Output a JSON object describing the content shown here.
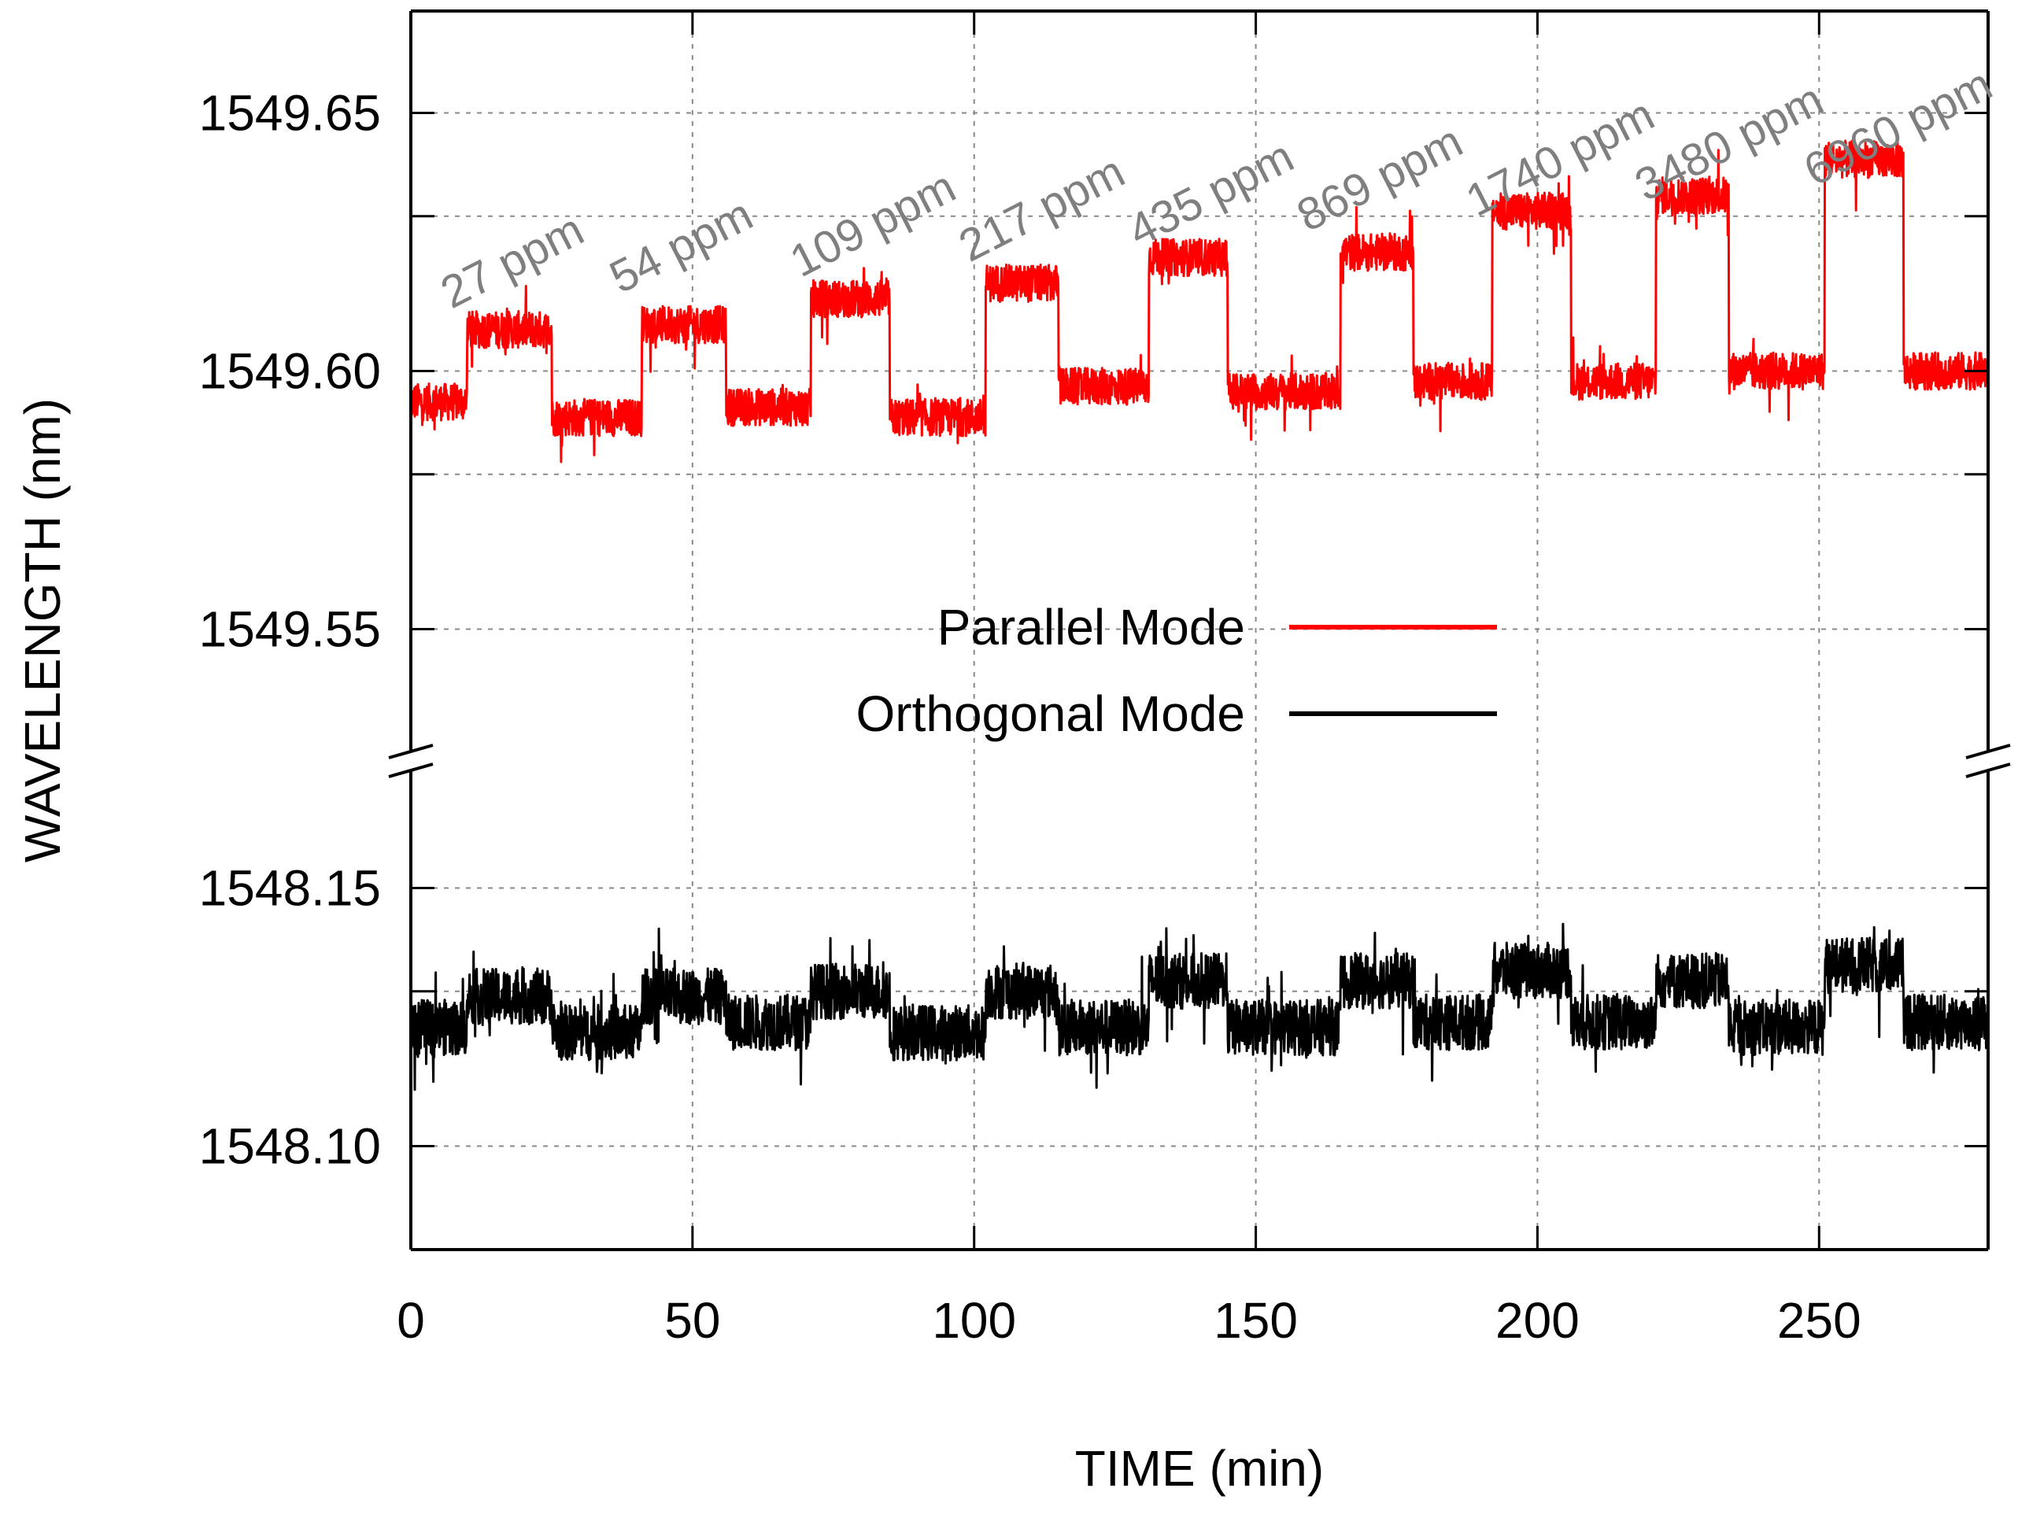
{
  "chart_data": {
    "type": "line",
    "title": "",
    "xlabel": "TIME (min)",
    "ylabel": "WAVELENGTH (nm)",
    "xlim": [
      0,
      280
    ],
    "xticks": [
      0,
      50,
      100,
      150,
      200,
      250
    ],
    "xtick_labels": [
      "0",
      "50",
      "100",
      "150",
      "200",
      "250"
    ],
    "broken_y_axis": true,
    "y_upper_range": [
      1549.52,
      1549.67
    ],
    "y_lower_range": [
      1548.08,
      1548.17
    ],
    "yticks": [
      1548.1,
      1548.15,
      1549.55,
      1549.6,
      1549.65
    ],
    "ytick_labels": [
      "1548.10",
      "1548.15",
      "1549.55",
      "1549.60",
      "1549.65"
    ],
    "grid": true,
    "legend_position": "center",
    "legend": [
      {
        "name": "Parallel Mode",
        "color": "#ff0000"
      },
      {
        "name": "Orthogonal Mode",
        "color": "#000000"
      }
    ],
    "concentration_annotations": [
      {
        "label": "27 ppm",
        "time": 3
      },
      {
        "label": "54 ppm",
        "time": 33
      },
      {
        "label": "109 ppm",
        "time": 65
      },
      {
        "label": "217 ppm",
        "time": 95
      },
      {
        "label": "435 ppm",
        "time": 125
      },
      {
        "label": "869 ppm",
        "time": 155
      },
      {
        "label": "1740 ppm",
        "time": 185
      },
      {
        "label": "3480 ppm",
        "time": 215
      },
      {
        "label": "6960 ppm",
        "time": 245
      }
    ],
    "exposure_steps": [
      {
        "concentration_ppm": 27,
        "start_min": 10,
        "end_min": 25
      },
      {
        "concentration_ppm": 54,
        "start_min": 41,
        "end_min": 56
      },
      {
        "concentration_ppm": 109,
        "start_min": 71,
        "end_min": 85
      },
      {
        "concentration_ppm": 217,
        "start_min": 102,
        "end_min": 115
      },
      {
        "concentration_ppm": 435,
        "start_min": 131,
        "end_min": 145
      },
      {
        "concentration_ppm": 869,
        "start_min": 165,
        "end_min": 178
      },
      {
        "concentration_ppm": 1740,
        "start_min": 192,
        "end_min": 206
      },
      {
        "concentration_ppm": 3480,
        "start_min": 221,
        "end_min": 234
      },
      {
        "concentration_ppm": 6960,
        "start_min": 251,
        "end_min": 265
      }
    ],
    "series": [
      {
        "name": "Parallel Mode",
        "color": "#ff0000",
        "baseline": [
          {
            "start": 0,
            "end": 10,
            "value": 1549.594
          },
          {
            "start": 25,
            "end": 41,
            "value": 1549.591
          },
          {
            "start": 56,
            "end": 71,
            "value": 1549.593
          },
          {
            "start": 85,
            "end": 102,
            "value": 1549.591
          },
          {
            "start": 115,
            "end": 131,
            "value": 1549.597
          },
          {
            "start": 145,
            "end": 165,
            "value": 1549.596
          },
          {
            "start": 178,
            "end": 192,
            "value": 1549.598
          },
          {
            "start": 206,
            "end": 221,
            "value": 1549.598
          },
          {
            "start": 234,
            "end": 251,
            "value": 1549.6
          },
          {
            "start": 265,
            "end": 280,
            "value": 1549.6
          }
        ],
        "plateau": [
          {
            "start": 10,
            "end": 25,
            "value": 1549.608
          },
          {
            "start": 41,
            "end": 56,
            "value": 1549.609
          },
          {
            "start": 71,
            "end": 85,
            "value": 1549.614
          },
          {
            "start": 102,
            "end": 115,
            "value": 1549.617
          },
          {
            "start": 131,
            "end": 145,
            "value": 1549.622
          },
          {
            "start": 165,
            "end": 178,
            "value": 1549.623
          },
          {
            "start": 192,
            "end": 206,
            "value": 1549.631
          },
          {
            "start": 221,
            "end": 234,
            "value": 1549.634
          },
          {
            "start": 251,
            "end": 265,
            "value": 1549.641
          }
        ],
        "noise_amplitude": 0.006
      },
      {
        "name": "Orthogonal Mode",
        "color": "#000000",
        "baseline": [
          {
            "start": 0,
            "end": 10,
            "value": 1548.123
          },
          {
            "start": 25,
            "end": 41,
            "value": 1548.122
          },
          {
            "start": 56,
            "end": 71,
            "value": 1548.124
          },
          {
            "start": 85,
            "end": 102,
            "value": 1548.122
          },
          {
            "start": 115,
            "end": 131,
            "value": 1548.123
          },
          {
            "start": 145,
            "end": 165,
            "value": 1548.123
          },
          {
            "start": 178,
            "end": 192,
            "value": 1548.124
          },
          {
            "start": 206,
            "end": 221,
            "value": 1548.124
          },
          {
            "start": 234,
            "end": 251,
            "value": 1548.123
          },
          {
            "start": 265,
            "end": 280,
            "value": 1548.124
          }
        ],
        "plateau": [
          {
            "start": 10,
            "end": 25,
            "value": 1548.129
          },
          {
            "start": 41,
            "end": 56,
            "value": 1548.129
          },
          {
            "start": 71,
            "end": 85,
            "value": 1548.13
          },
          {
            "start": 102,
            "end": 115,
            "value": 1548.13
          },
          {
            "start": 131,
            "end": 145,
            "value": 1548.132
          },
          {
            "start": 165,
            "end": 178,
            "value": 1548.132
          },
          {
            "start": 192,
            "end": 206,
            "value": 1548.134
          },
          {
            "start": 221,
            "end": 234,
            "value": 1548.132
          },
          {
            "start": 251,
            "end": 265,
            "value": 1548.135
          }
        ],
        "noise_amplitude": 0.009
      }
    ]
  }
}
